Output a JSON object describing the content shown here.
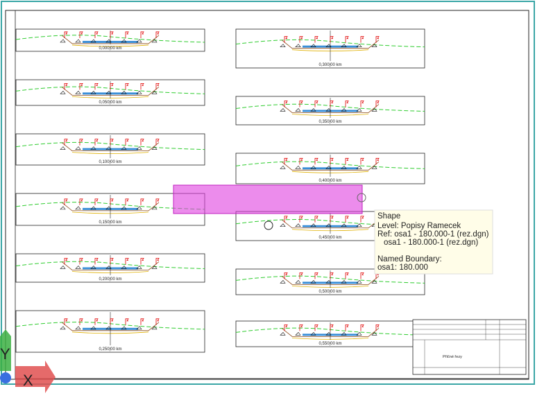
{
  "sections": [
    {
      "label": "0,000|00 km"
    },
    {
      "label": "0,050|00 km"
    },
    {
      "label": "0,100|00 km"
    },
    {
      "label": "0,150|00 km"
    },
    {
      "label": "0,200|00 km"
    },
    {
      "label": "0,250|00 km"
    },
    {
      "label": "0,300|00 km"
    },
    {
      "label": "0,350|00 km"
    },
    {
      "label": "0,400|00 km"
    },
    {
      "label": "0,450|00 km"
    },
    {
      "label": "0,500|00 km"
    },
    {
      "label": "0,550|00 km"
    }
  ],
  "tooltip": {
    "lines": [
      "Shape",
      "Level: Popisy Ramecek",
      "Ref: osa1 - 180.000-1 (rez.dgn)",
      "osa1 - 180.000-1 (rez.dgn)",
      "Named Boundary:",
      "osa1: 180.000"
    ]
  },
  "title_block": {
    "title": "Příčné řezy"
  },
  "view_axes": {
    "y": "Y",
    "x": "X"
  }
}
